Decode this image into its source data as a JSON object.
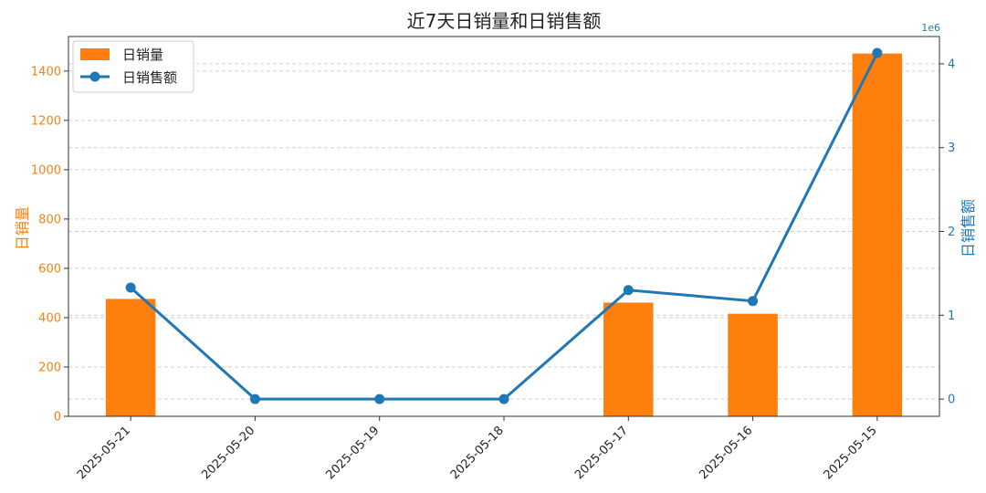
{
  "chart_data": {
    "type": "bar",
    "title": "近7天日销量和日销售额",
    "categories": [
      "2025-05-21",
      "2025-05-20",
      "2025-05-19",
      "2025-05-18",
      "2025-05-17",
      "2025-05-16",
      "2025-05-15"
    ],
    "series": [
      {
        "name": "日销量",
        "type": "bar",
        "axis": "left",
        "color": "#ff7f0e",
        "values": [
          476,
          0,
          0,
          0,
          461,
          416,
          1471
        ]
      },
      {
        "name": "日销售额",
        "type": "line",
        "axis": "right",
        "color": "#1f77b4",
        "marker": "circle",
        "values": [
          1330000,
          0,
          0,
          0,
          1300000,
          1170000,
          4130000
        ]
      }
    ],
    "left_axis": {
      "label": "日销量",
      "color": "#ff7f0e",
      "ylim": [
        0,
        1540
      ],
      "ticks": [
        0,
        200,
        400,
        600,
        800,
        1000,
        1200,
        1400
      ]
    },
    "right_axis": {
      "label": "日销售额",
      "color": "#1f77b4",
      "ylim": [
        -206000,
        4326000
      ],
      "ticks": [
        0,
        1,
        2,
        3,
        4
      ],
      "scale_note": "1e6"
    },
    "grid": true,
    "grid_axis": "y",
    "legend_position": "top-left"
  }
}
